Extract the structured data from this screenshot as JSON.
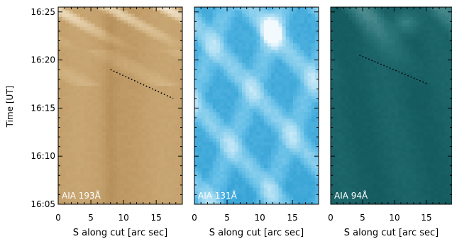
{
  "chart_data": [
    {
      "type": "heatmap",
      "panel_label": "AIA 193Å",
      "colormap": [
        "#8a6a3c",
        "#b48d58",
        "#ccab78",
        "#e0c8a0",
        "#f2e6cf"
      ],
      "xlabel": "S along cut [arc sec]",
      "ylabel": "Time [UT]",
      "xlim": [
        0,
        19
      ],
      "xticks": [
        "0",
        "5",
        "10",
        "15"
      ],
      "ylim": [
        "16:05",
        "16:25:30"
      ],
      "yticks": [
        "16:05",
        "16:10",
        "16:15",
        "16:20",
        "16:25"
      ],
      "dotted_line": {
        "x": [
          8.0,
          17.6
        ],
        "y": [
          "16:19",
          "16:16"
        ]
      }
    },
    {
      "type": "heatmap",
      "panel_label": "AIA 131Å",
      "colormap": [
        "#1e6f96",
        "#2a9bd0",
        "#5fbce6",
        "#a6dbf2",
        "#f2fafe"
      ],
      "xlabel": "S along cut [arc sec]",
      "xlim": [
        0,
        19
      ],
      "xticks": [
        "0",
        "5",
        "10",
        "15"
      ],
      "ylim": [
        "16:05",
        "16:25:30"
      ]
    },
    {
      "type": "heatmap",
      "panel_label": "AIA 94Å",
      "colormap": [
        "#0c4a4d",
        "#165e62",
        "#2b7478",
        "#5a9598",
        "#9cc2c3"
      ],
      "xlabel": "S along cut [arc sec]",
      "xlim": [
        0,
        19
      ],
      "xticks": [
        "0",
        "5",
        "10",
        "15"
      ],
      "ylim": [
        "16:05",
        "16:25:30"
      ],
      "dotted_line": {
        "x": [
          4.5,
          15.2
        ],
        "y": [
          "16:20:30",
          "16:17:30"
        ]
      }
    }
  ]
}
